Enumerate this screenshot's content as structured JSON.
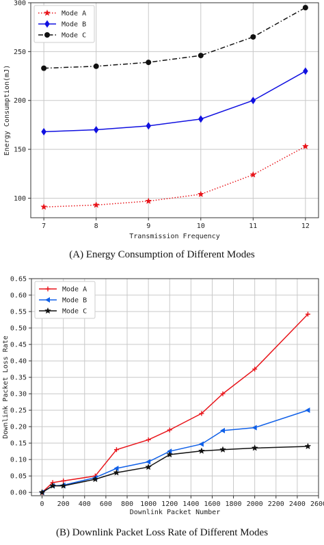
{
  "captions": {
    "a": "(A) Energy Consumption of Different Modes",
    "b": "(B) Downlink Packet Loss Rate of Different Modes"
  },
  "chart_data": [
    {
      "type": "line",
      "xlabel": "Transmission Frequency",
      "ylabel": "Energy Consumption(mJ)",
      "x": [
        7,
        8,
        9,
        10,
        11,
        12
      ],
      "xlim": [
        6.75,
        12.25
      ],
      "ylim": [
        80,
        300
      ],
      "xticks": [
        7,
        8,
        9,
        10,
        11,
        12
      ],
      "yticks": [
        100,
        150,
        200,
        250,
        300
      ],
      "grid": true,
      "legend": "top-left",
      "series": [
        {
          "name": "Mode A",
          "values": [
            91,
            93,
            97,
            104,
            124,
            153
          ],
          "color": "#e8141a",
          "dash": "1.5,2.5",
          "marker": "star"
        },
        {
          "name": "Mode B",
          "values": [
            168,
            170,
            174,
            181,
            200,
            230
          ],
          "color": "#1010e0",
          "dash": "",
          "marker": "diamond"
        },
        {
          "name": "Mode C",
          "values": [
            233,
            235,
            239,
            246,
            265,
            295
          ],
          "color": "#111111",
          "dash": "7,3,1.5,3",
          "marker": "circle"
        }
      ]
    },
    {
      "type": "line",
      "xlabel": "Downlink Packet Number",
      "ylabel": "Downlink Packet Loss Rate",
      "xlim": [
        -100,
        2600
      ],
      "ylim": [
        -0.01,
        0.65
      ],
      "xticks": [
        0,
        200,
        400,
        600,
        800,
        1000,
        1200,
        1400,
        1600,
        1800,
        2000,
        2200,
        2400,
        2600
      ],
      "yticks": [
        0.0,
        0.05,
        0.1,
        0.15,
        0.2,
        0.25,
        0.3,
        0.35,
        0.4,
        0.45,
        0.5,
        0.55,
        0.6,
        0.65
      ],
      "grid": true,
      "legend": "top-left",
      "series": [
        {
          "name": "Mode A",
          "color": "#e8141a",
          "marker": "plus",
          "x": [
            0,
            100,
            200,
            500,
            700,
            1000,
            1200,
            1500,
            1700,
            2000,
            2500
          ],
          "values": [
            0.0,
            0.03,
            0.035,
            0.05,
            0.13,
            0.16,
            0.19,
            0.24,
            0.3,
            0.375,
            0.542
          ]
        },
        {
          "name": "Mode B",
          "color": "#1060e8",
          "marker": "triangle-left",
          "x": [
            0,
            100,
            200,
            500,
            700,
            1000,
            1200,
            1500,
            1700,
            2000,
            2500
          ],
          "values": [
            0.0,
            0.02,
            0.022,
            0.045,
            0.073,
            0.093,
            0.125,
            0.147,
            0.188,
            0.197,
            0.25
          ]
        },
        {
          "name": "Mode C",
          "color": "#111111",
          "marker": "star",
          "x": [
            0,
            100,
            200,
            500,
            700,
            1000,
            1200,
            1500,
            1700,
            2000,
            2500
          ],
          "values": [
            0.0,
            0.02,
            0.02,
            0.04,
            0.06,
            0.077,
            0.115,
            0.126,
            0.13,
            0.135,
            0.14
          ]
        }
      ]
    }
  ]
}
